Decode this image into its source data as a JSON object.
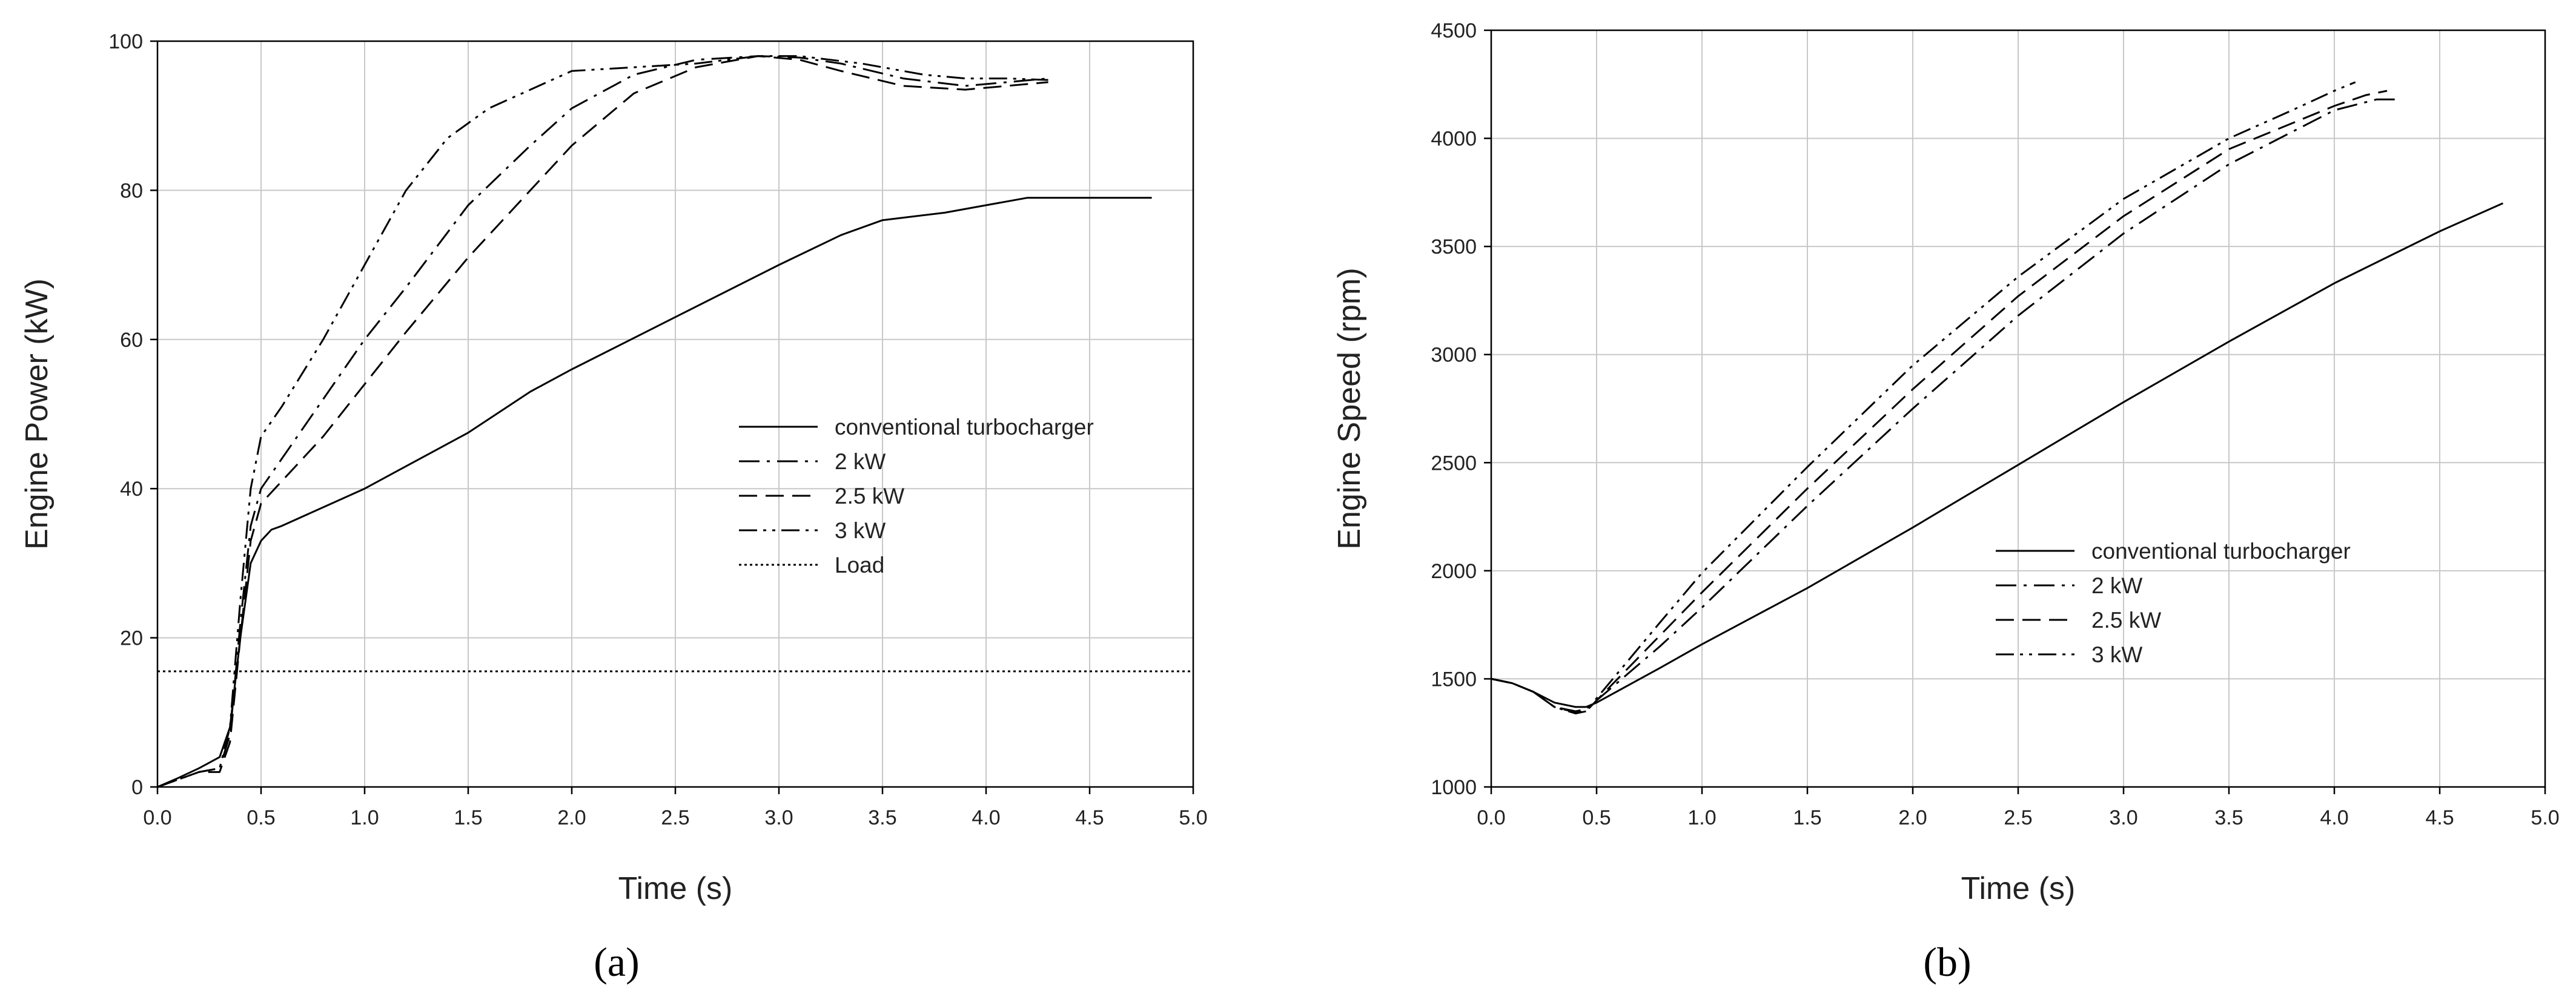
{
  "chart_data": [
    {
      "type": "line",
      "panel_label": "(a)",
      "xlabel": "Time (s)",
      "ylabel": "Engine Power (kW)",
      "xlim": [
        0,
        5
      ],
      "ylim": [
        0,
        100
      ],
      "xticks": [
        "0.0",
        "0.5",
        "1.0",
        "1.5",
        "2.0",
        "2.5",
        "3.0",
        "3.5",
        "4.0",
        "4.5",
        "5.0"
      ],
      "yticks": [
        "0",
        "20",
        "40",
        "60",
        "80",
        "100"
      ],
      "grid": true,
      "legend_position": "center-right",
      "series": [
        {
          "name": "conventional turbocharger",
          "dash": "solid",
          "x": [
            0,
            0.1,
            0.2,
            0.3,
            0.35,
            0.4,
            0.45,
            0.5,
            0.55,
            0.6,
            0.8,
            1.0,
            1.2,
            1.5,
            1.8,
            2.0,
            2.5,
            3.0,
            3.3,
            3.5,
            3.8,
            4.0,
            4.2,
            4.5,
            4.8
          ],
          "y": [
            0,
            1.2,
            2.5,
            4,
            8,
            20,
            30,
            33,
            34.5,
            35,
            37.5,
            40,
            43,
            47.5,
            53,
            56,
            63,
            70,
            74,
            76,
            77,
            78,
            79,
            79,
            79
          ]
        },
        {
          "name": "2 kW",
          "dash": "dashdot",
          "x": [
            0,
            0.1,
            0.2,
            0.3,
            0.35,
            0.4,
            0.45,
            0.5,
            0.6,
            0.8,
            1.0,
            1.2,
            1.5,
            1.8,
            2.0,
            2.3,
            2.6,
            2.9,
            3.1,
            3.3,
            3.6,
            3.9,
            4.1,
            4.3
          ],
          "y": [
            0,
            1,
            2,
            2.5,
            7,
            22,
            35,
            40,
            44,
            52,
            60,
            67,
            78,
            86,
            91,
            95.5,
            97.5,
            98,
            97.8,
            97,
            95,
            94,
            94.5,
            95
          ]
        },
        {
          "name": "2.5 kW",
          "dash": "dashed",
          "x": [
            0,
            0.1,
            0.2,
            0.3,
            0.35,
            0.4,
            0.45,
            0.5,
            0.6,
            0.8,
            1.0,
            1.2,
            1.5,
            1.8,
            2.0,
            2.3,
            2.6,
            2.9,
            3.1,
            3.3,
            3.6,
            3.9,
            4.1,
            4.3
          ],
          "y": [
            0,
            1,
            2,
            2,
            6,
            20,
            33,
            38,
            41,
            47,
            54,
            61,
            71,
            80,
            86,
            93,
            96.5,
            98,
            97.5,
            96,
            94,
            93.5,
            94,
            94.5
          ]
        },
        {
          "name": "3 kW",
          "dash": "dashdotdot",
          "x": [
            0,
            0.1,
            0.2,
            0.3,
            0.35,
            0.4,
            0.45,
            0.5,
            0.6,
            0.8,
            1.0,
            1.2,
            1.4,
            1.6,
            1.8,
            2.0,
            2.3,
            2.6,
            2.9,
            3.1,
            3.4,
            3.7,
            3.9,
            4.1,
            4.3
          ],
          "y": [
            0,
            1,
            2,
            2.5,
            8,
            25,
            40,
            47,
            51,
            60,
            70,
            80,
            87,
            91,
            93.5,
            96,
            96.5,
            97,
            98,
            98,
            97,
            95.5,
            95,
            95,
            94.8
          ]
        },
        {
          "name": "Load",
          "dash": "dotted",
          "x": [
            0,
            5
          ],
          "y": [
            15.5,
            15.5
          ]
        }
      ]
    },
    {
      "type": "line",
      "panel_label": "(b)",
      "xlabel": "Time (s)",
      "ylabel": "Engine Speed (rpm)",
      "xlim": [
        0,
        5
      ],
      "ylim": [
        1000,
        4500
      ],
      "xticks": [
        "0.0",
        "0.5",
        "1.0",
        "1.5",
        "2.0",
        "2.5",
        "3.0",
        "3.5",
        "4.0",
        "4.5",
        "5.0"
      ],
      "yticks": [
        "1000",
        "1500",
        "2000",
        "2500",
        "3000",
        "3500",
        "4000",
        "4500"
      ],
      "grid": true,
      "legend_position": "center-right",
      "series": [
        {
          "name": "conventional turbocharger",
          "dash": "solid",
          "x": [
            0,
            0.1,
            0.2,
            0.3,
            0.4,
            0.45,
            0.5,
            0.8,
            1.0,
            1.5,
            2.0,
            2.5,
            3.0,
            3.5,
            4.0,
            4.5,
            4.8
          ],
          "y": [
            1500,
            1480,
            1440,
            1390,
            1370,
            1370,
            1390,
            1550,
            1660,
            1920,
            2200,
            2490,
            2780,
            3060,
            3330,
            3570,
            3700
          ]
        },
        {
          "name": "2 kW",
          "dash": "dashdot",
          "x": [
            0,
            0.1,
            0.2,
            0.3,
            0.4,
            0.45,
            0.5,
            0.8,
            1.0,
            1.5,
            2.0,
            2.5,
            3.0,
            3.5,
            4.0,
            4.2,
            4.3
          ],
          "y": [
            1500,
            1480,
            1440,
            1370,
            1350,
            1360,
            1400,
            1650,
            1830,
            2300,
            2750,
            3180,
            3560,
            3880,
            4130,
            4180,
            4180
          ]
        },
        {
          "name": "2.5 kW",
          "dash": "dashed",
          "x": [
            0,
            0.1,
            0.2,
            0.3,
            0.4,
            0.45,
            0.5,
            0.8,
            1.0,
            1.5,
            2.0,
            2.5,
            3.0,
            3.5,
            4.0,
            4.15,
            4.25
          ],
          "y": [
            1500,
            1480,
            1440,
            1370,
            1345,
            1350,
            1400,
            1700,
            1900,
            2380,
            2840,
            3270,
            3640,
            3950,
            4150,
            4200,
            4220
          ]
        },
        {
          "name": "3 kW",
          "dash": "dashdotdot",
          "x": [
            0,
            0.1,
            0.2,
            0.3,
            0.4,
            0.45,
            0.5,
            0.8,
            1.0,
            1.5,
            2.0,
            2.5,
            3.0,
            3.5,
            3.8,
            4.0,
            4.1
          ],
          "y": [
            1500,
            1480,
            1440,
            1370,
            1340,
            1350,
            1410,
            1760,
            1990,
            2480,
            2950,
            3360,
            3720,
            4000,
            4130,
            4220,
            4260
          ]
        }
      ]
    }
  ]
}
